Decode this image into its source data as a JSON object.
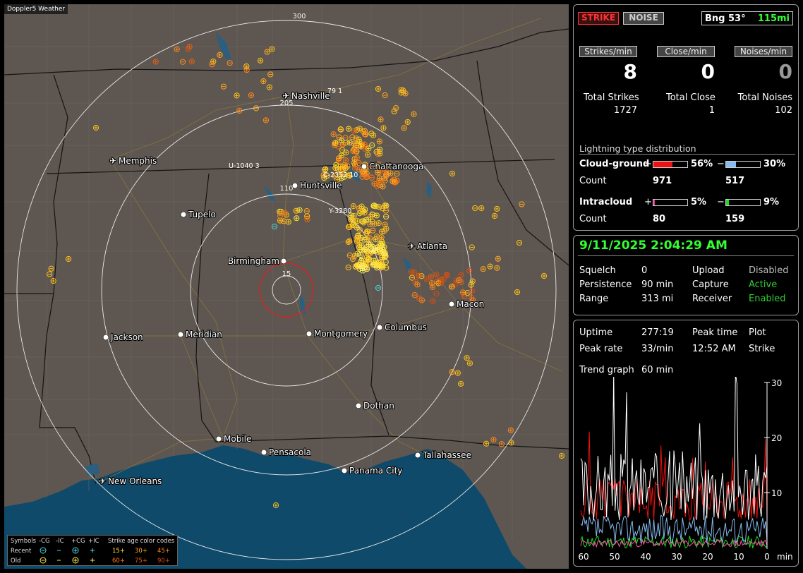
{
  "app": {
    "title": "Doppler5 Weather"
  },
  "colors": {
    "strike_red": "#cc0000",
    "active_green": "#33cc33",
    "bearing_green": "#33ff33",
    "ocean": "#0f4a6a",
    "land": "#5e5650"
  },
  "map": {
    "range_labels": [
      "300",
      "205",
      "110",
      "15"
    ],
    "cities": [
      {
        "name": "Nashville",
        "icon": "airport-icon"
      },
      {
        "name": "Memphis",
        "icon": "airport-icon"
      },
      {
        "name": "Chattanooga",
        "icon": "city-dot-icon"
      },
      {
        "name": "Huntsville",
        "icon": "city-dot-icon"
      },
      {
        "name": "Tupelo",
        "icon": "city-dot-icon"
      },
      {
        "name": "Birmingham",
        "icon": "city-dot-icon"
      },
      {
        "name": "Atlanta",
        "icon": "airport-icon"
      },
      {
        "name": "Macon",
        "icon": "city-dot-icon"
      },
      {
        "name": "Jackson",
        "icon": "city-dot-icon"
      },
      {
        "name": "Meridian",
        "icon": "city-dot-icon"
      },
      {
        "name": "Montgomery",
        "icon": "city-dot-icon"
      },
      {
        "name": "Columbus",
        "icon": "city-dot-icon"
      },
      {
        "name": "Dothan",
        "icon": "city-dot-icon"
      },
      {
        "name": "Mobile",
        "icon": "city-dot-icon"
      },
      {
        "name": "Pensacola",
        "icon": "city-dot-icon"
      },
      {
        "name": "Tallahassee",
        "icon": "city-dot-icon"
      },
      {
        "name": "Panama City",
        "icon": "city-dot-icon"
      },
      {
        "name": "New Orleans",
        "icon": "airport-icon"
      }
    ],
    "road_labels": [
      "79  1",
      "U-1040  3",
      "C-2352  10",
      "Y-3280"
    ],
    "legend": {
      "symbols_label": "Symbols",
      "recent_label": "Recent",
      "old_label": "Old",
      "headers": [
        "-CG",
        "-IC",
        "+CG",
        "+IC"
      ],
      "age_title": "Strike age color codes",
      "recent_ages": [
        "15+",
        "30+",
        "45+"
      ],
      "old_ages": [
        "60+",
        "75+",
        "90+"
      ]
    }
  },
  "stats": {
    "strike_label": "STRIKE",
    "noise_label": "NOISE",
    "bearing": "Bng 53°",
    "range": "115mi",
    "strikes_per_min_label": "Strikes/min",
    "close_per_min_label": "Close/min",
    "noises_per_min_label": "Noises/min",
    "strikes_per_min": "8",
    "close_per_min": "0",
    "noises_per_min": "0",
    "total_strikes_label": "Total Strikes",
    "total_close_label": "Total Close",
    "total_noises_label": "Total Noises",
    "total_strikes": "1727",
    "total_close": "1",
    "total_noises": "102",
    "dist_title": "Lightning type distribution",
    "cg_label": "Cloud-ground",
    "ic_label": "Intracloud",
    "count_label": "Count",
    "plus": "+",
    "minus": "−",
    "cg_pos_pct": "56%",
    "cg_neg_pct": "30%",
    "ic_pos_pct": "5%",
    "ic_neg_pct": "9%",
    "cg_pos_frac": 0.56,
    "cg_neg_frac": 0.3,
    "ic_pos_frac": 0.05,
    "ic_neg_frac": 0.09,
    "cg_pos_count": "971",
    "cg_neg_count": "517",
    "ic_pos_count": "80",
    "ic_neg_count": "159"
  },
  "status": {
    "datetime": "9/11/2025 2:04:29 AM",
    "squelch_label": "Squelch",
    "squelch": "0",
    "persistence_label": "Persistence",
    "persistence": "90 min",
    "range_label": "Range",
    "range": "313 mi",
    "upload_label": "Upload",
    "upload": "Disabled",
    "capture_label": "Capture",
    "capture": "Active",
    "receiver_label": "Receiver",
    "receiver": "Enabled"
  },
  "trend": {
    "uptime_label": "Uptime",
    "uptime": "277:19",
    "peak_time_label": "Peak time",
    "peak_time": "12:52 AM",
    "plot_label": "Plot",
    "plot": "Strike",
    "peak_rate_label": "Peak rate",
    "peak_rate": "33/min",
    "trend_graph_label": "Trend graph",
    "trend_graph": "60 min",
    "y_ticks": [
      "30",
      "20",
      "10"
    ],
    "x_ticks": [
      "60",
      "50",
      "40",
      "30",
      "20",
      "10",
      "0"
    ],
    "x_unit": "min"
  }
}
